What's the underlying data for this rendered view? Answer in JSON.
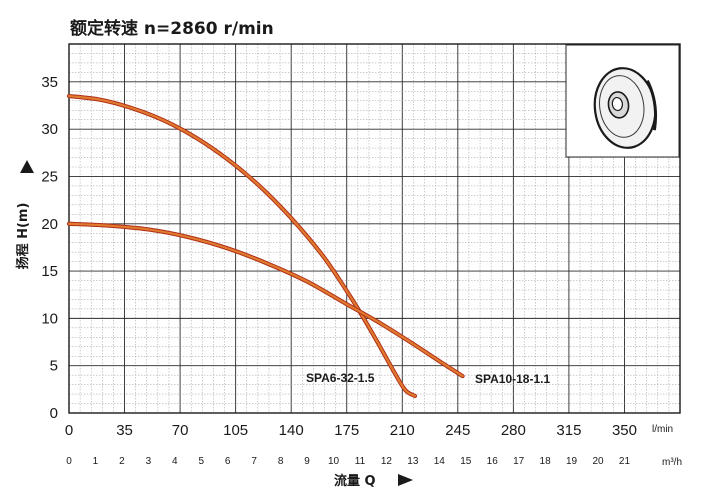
{
  "title": "额定转速 n=2860 r/min",
  "colors": {
    "curve_fill": "#e07a2e",
    "curve_edge": "#b0301a",
    "grid_major": "#2a2a2a",
    "grid_minor": "#9a9a9a",
    "background": "#ffffff"
  },
  "chart_data": {
    "type": "line",
    "title": "额定转速 n=2860 r/min",
    "ylabel": "扬程 H(m)",
    "xlabel": "流量 Q",
    "x_unit_top": "l/min",
    "x_unit_bottom": "m³/h",
    "xlim": [
      0,
      385
    ],
    "ylim": [
      0,
      39
    ],
    "x_ticks": [
      "0",
      "35",
      "70",
      "105",
      "140",
      "175",
      "210",
      "245",
      "280",
      "315",
      "350"
    ],
    "x2_ticks": [
      "0",
      "1",
      "2",
      "3",
      "4",
      "5",
      "6",
      "7",
      "8",
      "9",
      "10",
      "11",
      "12",
      "13",
      "14",
      "15",
      "16",
      "17",
      "18",
      "19",
      "20",
      "21"
    ],
    "y_ticks": [
      "0",
      "5",
      "10",
      "15",
      "20",
      "25",
      "30",
      "35"
    ],
    "grid": true,
    "series": [
      {
        "name": "SPA6-32-1.5",
        "x": [
          0,
          20,
          40,
          60,
          80,
          100,
          120,
          140,
          160,
          175,
          185,
          195,
          205,
          212,
          218
        ],
        "y": [
          33.5,
          33.1,
          32.2,
          30.9,
          29.1,
          26.8,
          24.0,
          20.6,
          16.6,
          12.9,
          10.2,
          7.3,
          4.3,
          2.4,
          1.8
        ]
      },
      {
        "name": "SPA10-18-1.1",
        "x": [
          0,
          25,
          50,
          75,
          100,
          125,
          150,
          175,
          195,
          215,
          235,
          248
        ],
        "y": [
          20.0,
          19.8,
          19.4,
          18.6,
          17.4,
          15.8,
          13.9,
          11.5,
          9.6,
          7.5,
          5.3,
          3.9
        ]
      }
    ],
    "inset_image": "impeller-photo"
  }
}
